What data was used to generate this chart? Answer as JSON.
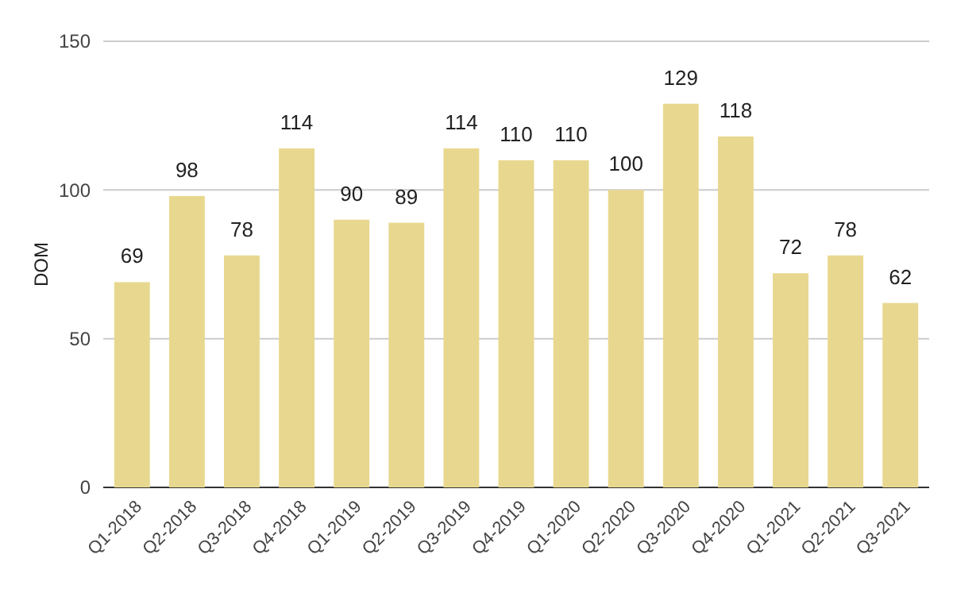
{
  "chart_data": {
    "type": "bar",
    "ylabel": "DOM",
    "categories": [
      "Q1-2018",
      "Q2-2018",
      "Q3-2018",
      "Q4-2018",
      "Q1-2019",
      "Q2-2019",
      "Q3-2019",
      "Q4-2019",
      "Q1-2020",
      "Q2-2020",
      "Q3-2020",
      "Q4-2020",
      "Q1-2021",
      "Q2-2021",
      "Q3-2021"
    ],
    "values": [
      69,
      98,
      78,
      114,
      90,
      89,
      114,
      110,
      110,
      100,
      129,
      118,
      72,
      78,
      62
    ],
    "color": "#e8d88f",
    "ylim": [
      0,
      150
    ],
    "yticks": [
      0,
      50,
      100,
      150
    ],
    "grid": "y",
    "data_labels": true
  }
}
